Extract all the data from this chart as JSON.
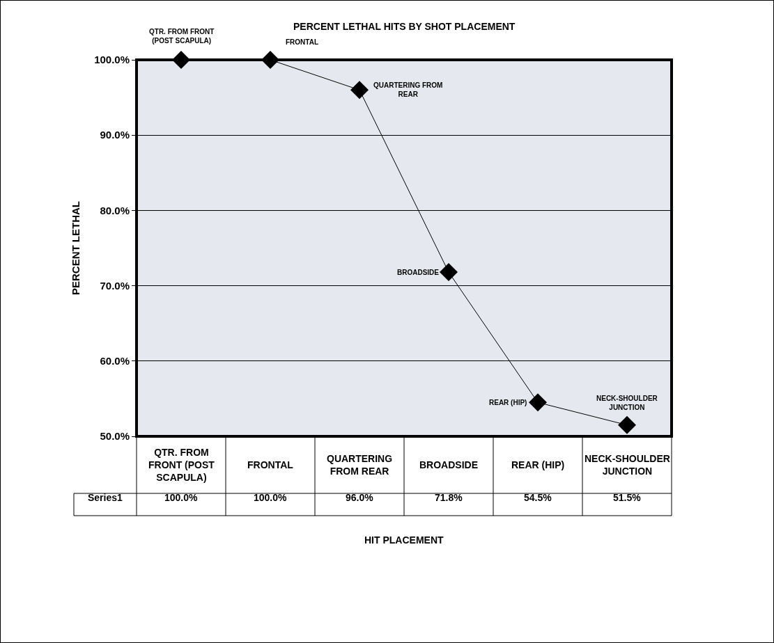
{
  "chart_data": {
    "type": "line",
    "title": "PERCENT LETHAL HITS BY SHOT PLACEMENT",
    "ylabel": "PERCENT LETHAL",
    "categories": [
      "QTR. FROM FRONT (POST SCAPULA)",
      "FRONTAL",
      "QUARTERING FROM REAR",
      "BROADSIDE",
      "REAR (HIP)",
      "NECK-SHOULDER JUNCTION"
    ],
    "series": [
      {
        "name": "Series1",
        "color": "#000000",
        "values": [
          100,
          100,
          96,
          71.8,
          54.5,
          51.5
        ],
        "value_labels": [
          "100.0%",
          "100.0%",
          "96.0%",
          "71.8%",
          "54.5%",
          "51.5%"
        ]
      }
    ],
    "annotations": [
      "HIT PLACEMENT",
      {
        "text": "QTR. FROM FRONT (POST SCAPULA)",
        "x": "QTR. FROM FRONT (POST SCAPULA)",
        "y": 100
      },
      {
        "text": "FRONTAL",
        "x": "FRONTAL",
        "y": 100
      },
      {
        "text": "QUARTERING FROM REAR",
        "x": "QUARTERING FROM REAR",
        "y": 96
      },
      {
        "text": "BROADSIDE",
        "x": "BROADSIDE",
        "y": 71.8
      },
      {
        "text": "REAR (HIP)",
        "x": "REAR (HIP)",
        "y": 54.5
      },
      {
        "text": "NECK-SHOULDER JUNCTION",
        "x": "NECK-SHOULDER JUNCTION",
        "y": 51.5
      }
    ],
    "ylim": [
      50,
      100
    ],
    "yticks": [
      {
        "value": 50,
        "label": "50.0%"
      },
      {
        "value": 60,
        "label": "60.0%"
      },
      {
        "value": 70,
        "label": "70.0%"
      },
      {
        "value": 80,
        "label": "80.0%"
      },
      {
        "value": 90,
        "label": "90.0%"
      },
      {
        "value": 100,
        "label": "100.0%"
      }
    ],
    "grid": "y",
    "legend": false,
    "marker": "diamond",
    "line_style": "solid"
  }
}
